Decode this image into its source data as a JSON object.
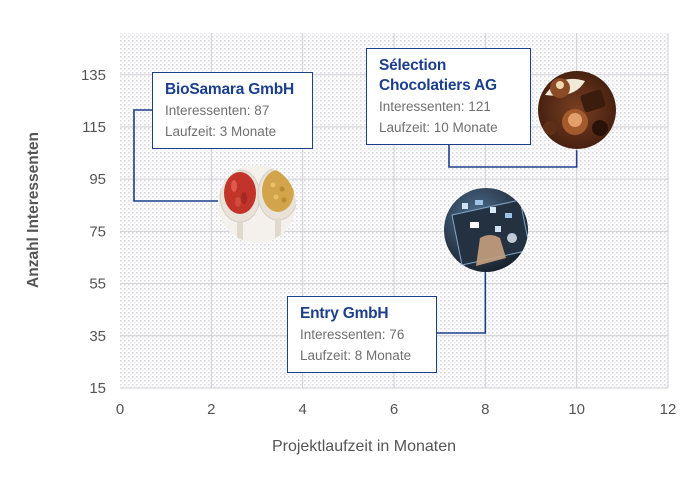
{
  "chart_data": {
    "type": "scatter",
    "xlabel": "Projektlaufzeit in Monaten",
    "ylabel": "Anzahl Interessenten",
    "xlim": [
      0,
      12
    ],
    "ylim": [
      15,
      151
    ],
    "xticks": [
      0,
      2,
      4,
      6,
      8,
      10,
      12
    ],
    "yticks": [
      15,
      35,
      55,
      75,
      95,
      115,
      135
    ],
    "grid": true,
    "points": [
      {
        "name": "BioSamara GmbH",
        "x": 3,
        "y": 87,
        "lines": [
          "Interessenten: 87",
          "Laufzeit: 3 Monate"
        ],
        "icon": "superfood-spoons-icon"
      },
      {
        "name": "Sélection Chocolatiers AG",
        "name_lines": [
          "Sélection",
          "Chocolatiers AG"
        ],
        "x": 10,
        "y": 121,
        "lines": [
          "Interessenten: 121",
          "Laufzeit: 10 Monate"
        ],
        "icon": "chocolate-pralines-icon"
      },
      {
        "name": "Entry GmbH",
        "x": 8,
        "y": 76,
        "lines": [
          "Interessenten: 76",
          "Laufzeit: 8 Monate"
        ],
        "icon": "digital-tablet-icon"
      }
    ]
  },
  "colors": {
    "accent": "#1c3f8c",
    "axis_text": "#555555",
    "grid": "#cfcfd6"
  }
}
